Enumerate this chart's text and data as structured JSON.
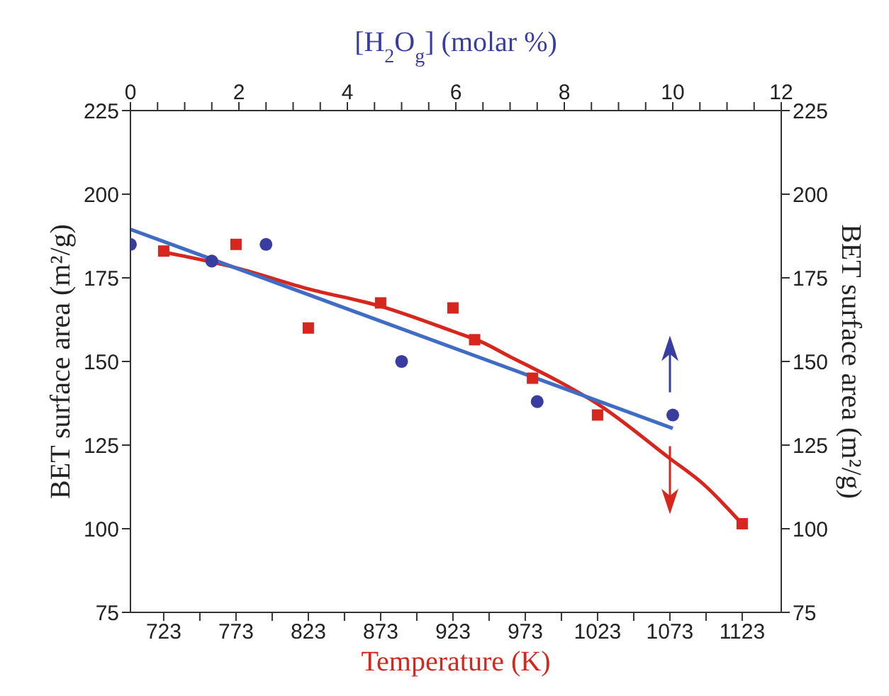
{
  "chart_data": {
    "type": "scatter",
    "xlabel": "Temperature (K)",
    "x2label": "[H$_{2}$O$_{g}$] (molar %)",
    "ylabel": "BET surface area (m²/g)",
    "y2label": "BET surface area (m²/g)",
    "xlim": [
      700,
      1150
    ],
    "xticks": [
      723,
      {
        "value": 748,
        "label": null
      },
      773,
      {
        "value": 798,
        "label": null
      },
      823,
      {
        "value": 848,
        "label": null
      },
      873,
      {
        "value": 898,
        "label": null
      },
      923,
      {
        "value": 948,
        "label": null
      },
      973,
      {
        "value": 998,
        "label": null
      },
      1023,
      {
        "value": 1048,
        "label": null
      },
      1073,
      {
        "value": 1098,
        "label": null
      },
      1123
    ],
    "x2lim": [
      0,
      12
    ],
    "x2ticks": [
      0,
      {
        "value": 0.5,
        "label": null
      },
      {
        "value": 1,
        "label": null
      },
      {
        "value": 1.5,
        "label": null
      },
      2,
      {
        "value": 2.5,
        "label": null
      },
      {
        "value": 3,
        "label": null
      },
      {
        "value": 3.5,
        "label": null
      },
      4,
      {
        "value": 4.5,
        "label": null
      },
      {
        "value": 5,
        "label": null
      },
      {
        "value": 5.5,
        "label": null
      },
      6,
      {
        "value": 6.5,
        "label": null
      },
      {
        "value": 7,
        "label": null
      },
      {
        "value": 7.5,
        "label": null
      },
      8,
      {
        "value": 8.5,
        "label": null
      },
      {
        "value": 9,
        "label": null
      },
      {
        "value": 9.5,
        "label": null
      },
      10,
      {
        "value": 10.5,
        "label": null
      },
      {
        "value": 11,
        "label": null
      },
      {
        "value": 11.5,
        "label": null
      },
      12
    ],
    "ylim": [
      75,
      225
    ],
    "yticks": [
      75,
      100,
      125,
      150,
      175,
      200,
      225
    ],
    "y2lim": [
      75,
      225
    ],
    "y2ticks": [
      75,
      100,
      125,
      150,
      175,
      200,
      225
    ],
    "series": [
      {
        "type": "scatter",
        "color": "#d7261e",
        "marker": "square",
        "x": [
          723,
          773,
          823,
          873,
          923,
          938,
          978,
          1023,
          1123
        ],
        "values": [
          183,
          185,
          160,
          167.5,
          166,
          156.5,
          145,
          134,
          101.5
        ]
      },
      {
        "type": "line",
        "color": "#d7261e",
        "x": [
          723,
          773,
          823,
          873,
          923,
          943,
          963,
          976,
          995,
          1023,
          1073,
          1096,
          1123
        ],
        "values": [
          182.7,
          178,
          171.7,
          166.5,
          159,
          155.8,
          151.3,
          148.5,
          144.3,
          137.3,
          121,
          113.4,
          101.4
        ]
      },
      {
        "type": "scatter",
        "axis": "x2",
        "color": "#3a3da0",
        "marker": "circle",
        "x": [
          0,
          1.5,
          2.5,
          5,
          7.5,
          10
        ],
        "values": [
          185,
          180,
          185,
          150,
          138,
          134
        ]
      },
      {
        "type": "line",
        "axis": "x2",
        "color": "#3f6cc4",
        "x": [
          0,
          10
        ],
        "values": [
          189.5,
          130
        ]
      }
    ]
  }
}
